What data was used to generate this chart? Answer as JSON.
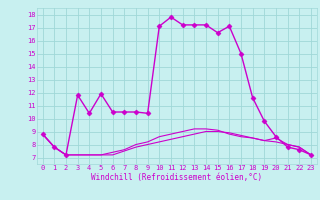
{
  "title": "",
  "xlabel": "Windchill (Refroidissement éolien,°C)",
  "background_color": "#c8f0f0",
  "grid_color": "#a0d8d8",
  "line_color": "#cc00cc",
  "x_ticks": [
    0,
    1,
    2,
    3,
    4,
    5,
    6,
    7,
    8,
    9,
    10,
    11,
    12,
    13,
    14,
    15,
    16,
    17,
    18,
    19,
    20,
    21,
    22,
    23
  ],
  "y_ticks": [
    7,
    8,
    9,
    10,
    11,
    12,
    13,
    14,
    15,
    16,
    17,
    18
  ],
  "xlim": [
    -0.5,
    23.5
  ],
  "ylim": [
    6.5,
    18.5
  ],
  "series": [
    {
      "x": [
        0,
        1,
        2,
        3,
        4,
        5,
        6,
        7,
        8,
        9,
        10,
        11,
        12,
        13,
        14,
        15,
        16,
        17,
        18,
        19,
        20,
        21,
        22,
        23
      ],
      "y": [
        8.8,
        7.8,
        7.2,
        11.8,
        10.4,
        11.9,
        10.5,
        10.5,
        10.5,
        10.4,
        17.1,
        17.8,
        17.2,
        17.2,
        17.2,
        16.6,
        17.1,
        15.0,
        11.6,
        9.8,
        8.6,
        7.8,
        7.6,
        7.2
      ],
      "marker": "D",
      "markersize": 2.5,
      "linewidth": 1.0
    },
    {
      "x": [
        0,
        1,
        2,
        3,
        4,
        5,
        6,
        7,
        8,
        9,
        10,
        11,
        12,
        13,
        14,
        15,
        16,
        17,
        18,
        19,
        20,
        21,
        22,
        23
      ],
      "y": [
        8.8,
        7.8,
        7.2,
        7.2,
        7.2,
        7.2,
        7.2,
        7.5,
        7.8,
        8.0,
        8.2,
        8.4,
        8.6,
        8.8,
        9.0,
        9.0,
        8.9,
        8.7,
        8.5,
        8.3,
        8.5,
        8.0,
        7.8,
        7.2
      ],
      "marker": null,
      "markersize": 0,
      "linewidth": 0.8
    },
    {
      "x": [
        0,
        1,
        2,
        3,
        4,
        5,
        6,
        7,
        8,
        9,
        10,
        11,
        12,
        13,
        14,
        15,
        16,
        17,
        18,
        19,
        20,
        21,
        22,
        23
      ],
      "y": [
        8.8,
        7.8,
        7.2,
        7.2,
        7.2,
        7.2,
        7.4,
        7.6,
        8.0,
        8.2,
        8.6,
        8.8,
        9.0,
        9.2,
        9.2,
        9.1,
        8.8,
        8.6,
        8.5,
        8.3,
        8.2,
        8.0,
        7.8,
        7.2
      ],
      "marker": null,
      "markersize": 0,
      "linewidth": 0.8
    }
  ],
  "tick_fontsize": 5,
  "xlabel_fontsize": 5.5
}
